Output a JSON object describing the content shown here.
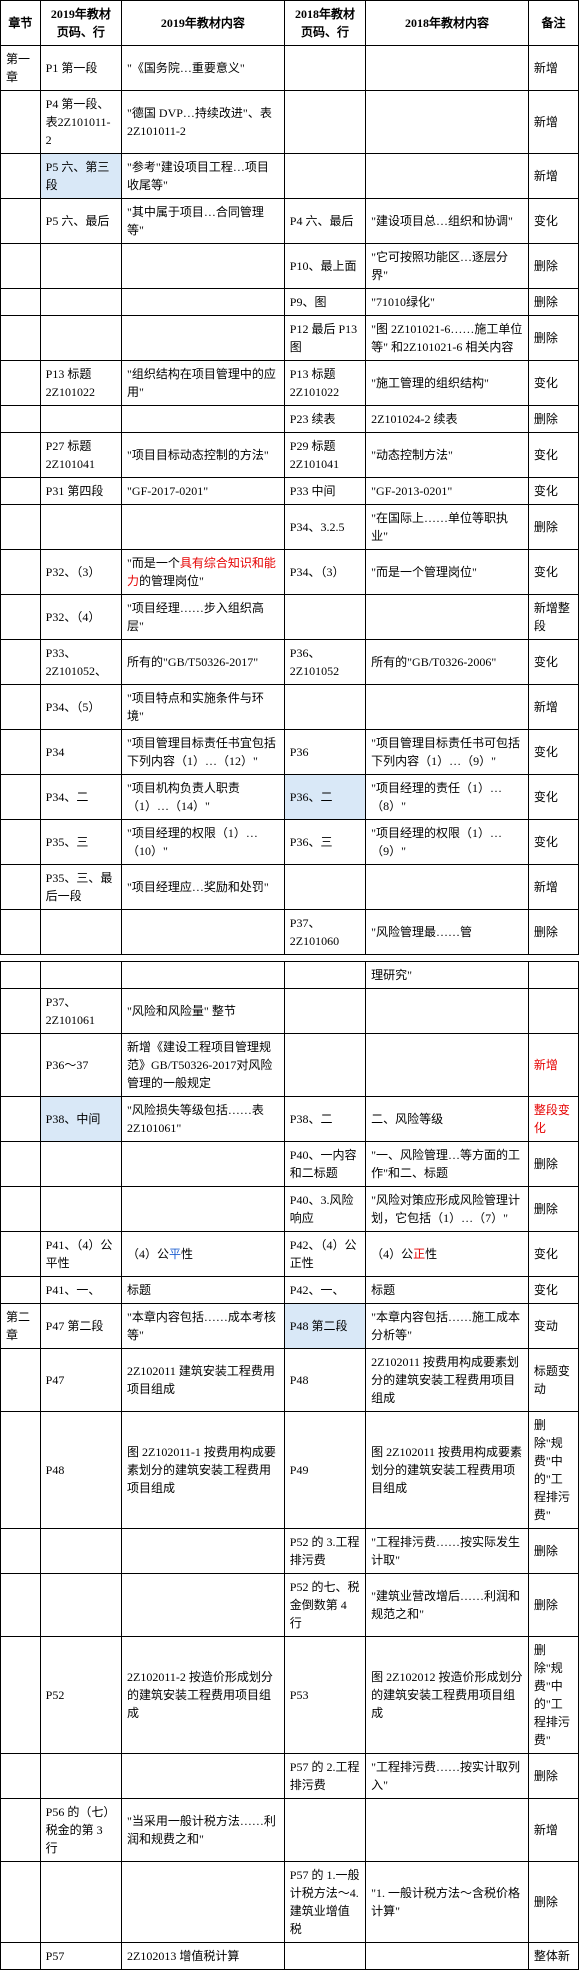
{
  "headers": {
    "chapter": "章节",
    "page2019": "2019年教材页码、行",
    "content2019": "2019年教材内容",
    "page2018": "2018年教材页码、行",
    "content2018": "2018年教材内容",
    "remark": "备注"
  },
  "rows": [
    {
      "chapter": "第一章",
      "p19": "P1 第一段",
      "c19": "\"《国务院…重要意义\"",
      "p18": "",
      "c18": "",
      "remark": "新增"
    },
    {
      "chapter": "",
      "p19": "P4 第一段、表2Z101011-2",
      "c19": "\"德国 DVP…持续改进\"、表 2Z101011-2",
      "p18": "",
      "c18": "",
      "remark": "新增"
    },
    {
      "chapter": "",
      "p19": "P5 六、第三段",
      "c19": "\"参考\"建设项目工程…项目收尾等\"",
      "p18": "",
      "c18": "",
      "remark": "新增",
      "p19_hl": true
    },
    {
      "chapter": "",
      "p19": "P5 六、最后",
      "c19": "\"其中属于项目…合同管理等\"",
      "p18": "P4 六、最后",
      "c18": "\"建设项目总…组织和协调\"",
      "remark": "变化"
    },
    {
      "chapter": "",
      "p19": "",
      "c19": "",
      "p18": "P10、最上面",
      "c18": "\"它可按照功能区…逐层分界\"",
      "remark": "删除"
    },
    {
      "chapter": "",
      "p19": "",
      "c19": "",
      "p18": "P9、图",
      "c18": "\"71010绿化\"",
      "remark": "删除"
    },
    {
      "chapter": "",
      "p19": "",
      "c19": "",
      "p18": "P12 最后 P13 图",
      "c18": "\"图 2Z101021-6……施工单位等\" 和2Z101021-6 相关内容",
      "remark": "删除"
    },
    {
      "chapter": "",
      "p19": "P13 标题2Z101022",
      "c19": "\"组织结构在项目管理中的应用\"",
      "p18": "P13 标题2Z101022",
      "c18": "\"施工管理的组织结构\"",
      "remark": "变化"
    },
    {
      "chapter": "",
      "p19": "",
      "c19": "",
      "p18": "P23 续表",
      "c18": "2Z101024-2 续表",
      "remark": "删除"
    },
    {
      "chapter": "",
      "p19": "P27 标题2Z101041",
      "c19": "\"项目目标动态控制的方法\"",
      "p18": "P29 标题2Z101041",
      "c18": "\"动态控制方法\"",
      "remark": "变化"
    },
    {
      "chapter": "",
      "p19": "P31 第四段",
      "c19": "\"GF-2017-0201\"",
      "p18": "P33 中间",
      "c18": "\"GF-2013-0201\"",
      "remark": "变化"
    },
    {
      "chapter": "",
      "p19": "",
      "c19": "",
      "p18": "P34、3.2.5",
      "c18": "\"在国际上……单位等职执业\"",
      "remark": "删除"
    },
    {
      "chapter": "",
      "p19": "P32、（3）",
      "c19": "\"而是一个具有综合知识和能力的管理岗位\"",
      "p18": "P34、（3）",
      "c18": "\"而是一个管理岗位\"",
      "remark": "变化",
      "c19_html": "\"而是一个<span class='red'>具有综合知识和能力</span>的管理岗位\""
    },
    {
      "chapter": "",
      "p19": "P32、（4）",
      "c19": "\"项目经理……步入组织高层\"",
      "p18": "",
      "c18": "",
      "remark": "新增整段"
    },
    {
      "chapter": "",
      "p19": "P33、2Z101052、",
      "c19": "所有的\"GB/T50326-2017\"",
      "p18": "P36、2Z101052",
      "c18": "所有的\"GB/T0326-2006\"",
      "remark": "变化"
    },
    {
      "chapter": "",
      "p19": "P34、（5）",
      "c19": "\"项目特点和实施条件与环境\"",
      "p18": "",
      "c18": "",
      "remark": "新增"
    },
    {
      "chapter": "",
      "p19": "P34",
      "c19": "\"项目管理目标责任书宜包括下列内容（1）…（12）\"",
      "p18": "P36",
      "c18": "\"项目管理目标责任书可包括下列内容（1）…（9）\"",
      "remark": "变化"
    },
    {
      "chapter": "",
      "p19": "P34、二",
      "c19": "\"项目机构负责人职责（1）…（14）\"",
      "p18": "P36、二",
      "c18": "\"项目经理的责任（1）…（8）\"",
      "remark": "变化",
      "p18_hl": true
    },
    {
      "chapter": "",
      "p19": "P35、三",
      "c19": "\"项目经理的权限（1）…（10）\"",
      "p18": "P36、三",
      "c18": "\"项目经理的权限（1）…（9）\"",
      "remark": "变化"
    },
    {
      "chapter": "",
      "p19": "P35、三、最后一段",
      "c19": "\"项目经理应…奖励和处罚\"",
      "p18": "",
      "c18": "",
      "remark": "新增"
    },
    {
      "chapter": "",
      "p19": "",
      "c19": "",
      "p18": "P37、2Z101060",
      "c18": "\"风险管理最……管",
      "remark": "删除"
    }
  ],
  "rows2": [
    {
      "chapter": "",
      "p19": "",
      "c19": "",
      "p18": "",
      "c18": "理研究\"",
      "remark": ""
    },
    {
      "chapter": "",
      "p19": "P37、2Z101061",
      "c19": "\"风险和风险量\" 整节",
      "p18": "",
      "c18": "",
      "remark": ""
    },
    {
      "chapter": "",
      "p19": "P36～37",
      "c19": "新增《建设工程项目管理规范》GB/T50326-2017对风险管理的一般规定",
      "p18": "",
      "c18": "",
      "remark": "新增",
      "remark_red": true
    },
    {
      "chapter": "",
      "p19": "P38、中间",
      "c19": "\"风险损失等级包括……表 2Z101061\"",
      "p18": "P38、二",
      "c18": "二、风险等级",
      "remark": "整段变化",
      "remark_red": true,
      "p19_hl": true
    },
    {
      "chapter": "",
      "p19": "",
      "c19": "",
      "p18": "P40、一内容和二标题",
      "c18": "\"一、风险管理…等方面的工作\"和二、标题",
      "remark": "删除"
    },
    {
      "chapter": "",
      "p19": "",
      "c19": "",
      "p18": "P40、3.风险响应",
      "c18": "\"风险对策应形成风险管理计划，它包括（1）…（7）\"",
      "remark": "删除"
    },
    {
      "chapter": "",
      "p19": "P41、（4）公平性",
      "c19": "（4）公平性",
      "p18": "P42、（4）公正性",
      "c18": "（4）公正性",
      "remark": "变化",
      "c19_html": "（4）公<span class='blue'>平</span>性",
      "c18_html": "（4）公<span class='red'>正</span>性"
    },
    {
      "chapter": "",
      "p19": "P41、一、",
      "c19": "标题",
      "p18": "P42、一、",
      "c18": "标题",
      "remark": "变化"
    },
    {
      "chapter": "第二章",
      "p19": "P47 第二段",
      "c19": "\"本章内容包括……成本考核等\"",
      "p18": "P48 第二段",
      "c18": "\"本章内容包括……施工成本分析等\"",
      "remark": "变动",
      "p18_hl": true
    },
    {
      "chapter": "",
      "p19": "P47",
      "c19": "2Z102011 建筑安装工程费用项目组成",
      "p18": "P48",
      "c18": "2Z102011 按费用构成要素划分的建筑安装工程费用项目组成",
      "remark": "标题变动"
    },
    {
      "chapter": "",
      "p19": "P48",
      "c19": "图 2Z102011-1 按费用构成要素划分的建筑安装工程费用项目组成",
      "p18": "P49",
      "c18": "图 2Z102011 按费用构成要素划分的建筑安装工程费用项目组成",
      "remark": "删除\"规费\"中的\"工程排污费\""
    },
    {
      "chapter": "",
      "p19": "",
      "c19": "",
      "p18": "P52 的 3.工程排污费",
      "c18": "\"工程排污费……按实际发生计取\"",
      "remark": "删除"
    },
    {
      "chapter": "",
      "p19": "",
      "c19": "",
      "p18": "P52 的七、税金倒数第 4 行",
      "c18": "\"建筑业营改增后……利润和规范之和\"",
      "remark": "删除"
    },
    {
      "chapter": "",
      "p19": "P52",
      "c19": "2Z102011-2 按造价形成划分的建筑安装工程费用项目组成",
      "p18": "P53",
      "c18": "图 2Z102012 按造价形成划分的建筑安装工程费用项目组成",
      "remark": "删除\"规费\"中的\"工程排污费\""
    },
    {
      "chapter": "",
      "p19": "",
      "c19": "",
      "p18": "P57 的 2.工程排污费",
      "c18": "\"工程排污费……按实计取列入\"",
      "remark": "删除"
    },
    {
      "chapter": "",
      "p19": "P56 的（七）税金的第 3 行",
      "c19": "\"当采用一般计税方法……利润和规费之和\"",
      "p18": "",
      "c18": "",
      "remark": "新增"
    },
    {
      "chapter": "",
      "p19": "",
      "c19": "",
      "p18": "P57 的 1.一般计税方法～4.建筑业增值税",
      "c18": "\"1. 一般计税方法～含税价格计算\"",
      "remark": "删除"
    },
    {
      "chapter": "",
      "p19": "P57",
      "c19": "2Z102013 增值税计算",
      "p18": "",
      "c18": "",
      "remark": "整体新"
    }
  ]
}
